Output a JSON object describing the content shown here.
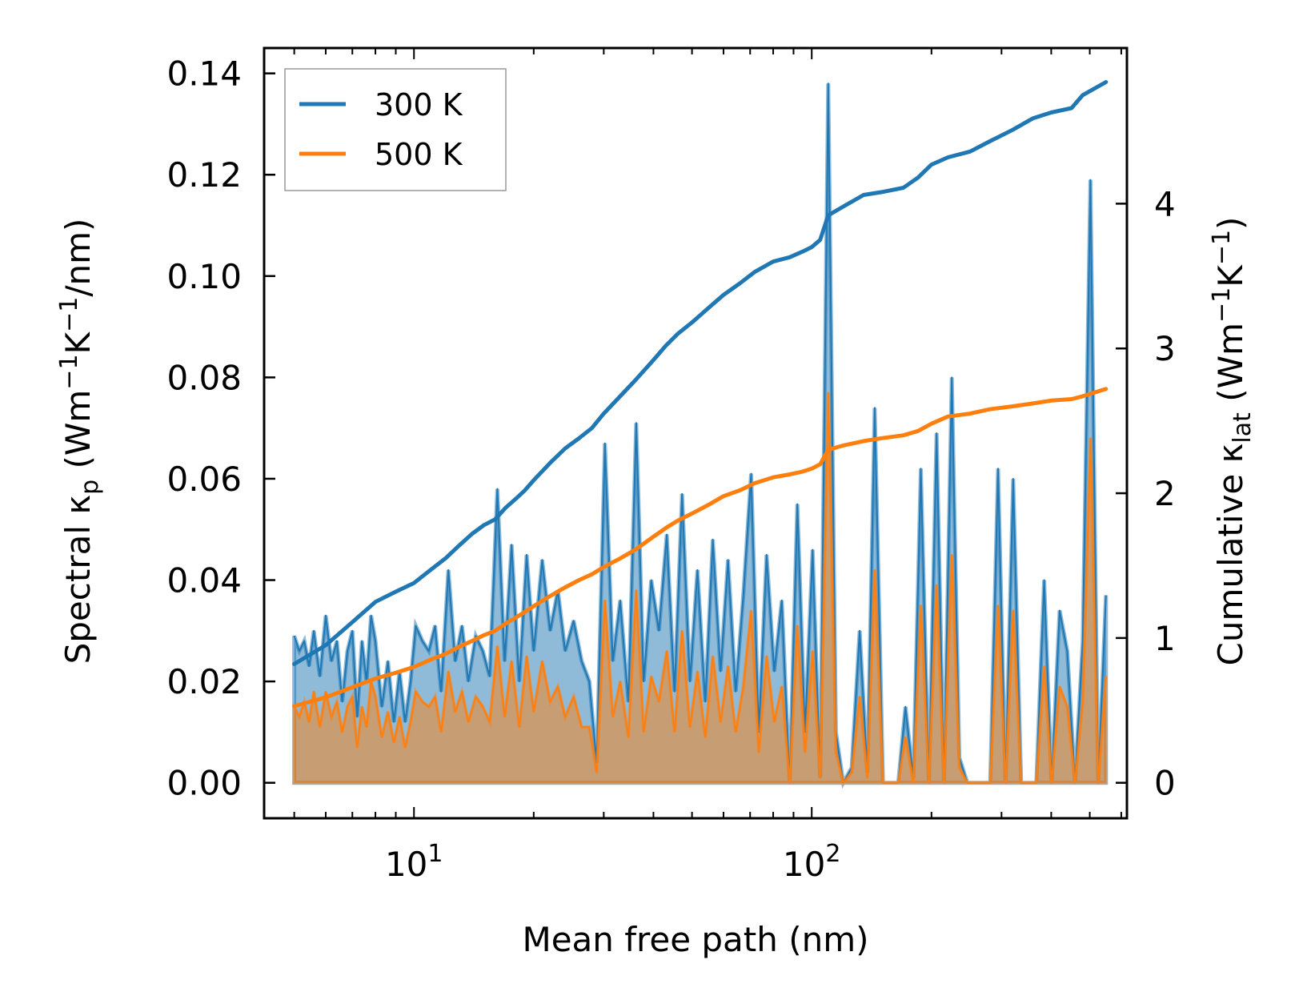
{
  "chart_data": {
    "type": "line",
    "xscale": "log",
    "xlabel": "Mean free path (nm)",
    "ylabel_left": {
      "prefix": "Spectral κ",
      "sub": "p",
      "units": " (Wm",
      "sup1": "−1",
      "mid": "K",
      "sup2": "−1",
      "tail": "/nm)"
    },
    "ylabel_right": {
      "prefix": "Cumulative κ",
      "sub": "lat",
      "units": " (Wm",
      "sup1": "−1",
      "mid": "K",
      "sup2": "−1",
      "tail": ")"
    },
    "xlim": [
      4.2,
      620
    ],
    "ylim_left": [
      -0.007,
      0.145
    ],
    "ylim_right": [
      -0.245,
      5.075
    ],
    "xticks_major": [
      {
        "value": 10,
        "base": "10",
        "exp": "1"
      },
      {
        "value": 100,
        "base": "10",
        "exp": "2"
      }
    ],
    "yticks_left": [
      {
        "value": 0.0,
        "label": "0.00"
      },
      {
        "value": 0.02,
        "label": "0.02"
      },
      {
        "value": 0.04,
        "label": "0.04"
      },
      {
        "value": 0.06,
        "label": "0.06"
      },
      {
        "value": 0.08,
        "label": "0.08"
      },
      {
        "value": 0.1,
        "label": "0.10"
      },
      {
        "value": 0.12,
        "label": "0.12"
      },
      {
        "value": 0.14,
        "label": "0.14"
      }
    ],
    "yticks_right": [
      {
        "value": 0,
        "label": "0"
      },
      {
        "value": 1,
        "label": "1"
      },
      {
        "value": 2,
        "label": "2"
      },
      {
        "value": 3,
        "label": "3"
      },
      {
        "value": 4,
        "label": "4"
      }
    ],
    "legend": {
      "location": "top-left",
      "entries": [
        {
          "label": "300 K",
          "color": "#1f77b4"
        },
        {
          "label": "500 K",
          "color": "#ff7f0e"
        }
      ]
    },
    "spectral_x": [
      5.0,
      5.15,
      5.3,
      5.45,
      5.6,
      5.8,
      6.0,
      6.2,
      6.4,
      6.6,
      6.8,
      7.0,
      7.2,
      7.4,
      7.6,
      7.8,
      8.0,
      8.3,
      8.6,
      8.9,
      9.2,
      9.5,
      9.8,
      10.1,
      10.5,
      10.9,
      11.3,
      11.7,
      12.2,
      12.7,
      13.2,
      13.7,
      14.3,
      14.9,
      15.5,
      16.2,
      16.9,
      17.6,
      18.4,
      19.2,
      20.0,
      21.0,
      22.0,
      23.0,
      24.0,
      25.2,
      26.4,
      27.6,
      28.8,
      30.2,
      31.6,
      33.0,
      34.6,
      36.2,
      37.8,
      39.5,
      41.3,
      43.2,
      45.2,
      47.2,
      49.4,
      51.6,
      54.0,
      56.4,
      59.0,
      61.6,
      64.4,
      67.3,
      70.4,
      73.6,
      77.0,
      80.5,
      84.1,
      88.0,
      92.0,
      96.2,
      100.5,
      105.0,
      110.0,
      115.0,
      120.0,
      126.0,
      132.0,
      138.0,
      144.0,
      151.0,
      158.0,
      165.0,
      172.0,
      180.0,
      188.0,
      197.0,
      206.0,
      215.0,
      225.0,
      235.0,
      246.0,
      257.0,
      269.0,
      281.0,
      294.0,
      307.0,
      321.0,
      336.0,
      351.0,
      367.0,
      384.0,
      401.0,
      420.0,
      439.0,
      459.0,
      480.0,
      502.0,
      525.0,
      549.0
    ],
    "spectral_300K": [
      0.029,
      0.026,
      0.028,
      0.023,
      0.03,
      0.021,
      0.033,
      0.024,
      0.028,
      0.016,
      0.026,
      0.03,
      0.013,
      0.028,
      0.02,
      0.033,
      0.028,
      0.015,
      0.024,
      0.012,
      0.022,
      0.012,
      0.02,
      0.031,
      0.028,
      0.026,
      0.031,
      0.018,
      0.042,
      0.024,
      0.031,
      0.02,
      0.029,
      0.026,
      0.021,
      0.058,
      0.024,
      0.047,
      0.02,
      0.045,
      0.026,
      0.044,
      0.03,
      0.038,
      0.026,
      0.032,
      0.024,
      0.02,
      0.004,
      0.067,
      0.024,
      0.036,
      0.016,
      0.071,
      0.02,
      0.04,
      0.03,
      0.049,
      0.018,
      0.057,
      0.02,
      0.042,
      0.016,
      0.048,
      0.022,
      0.044,
      0.018,
      0.037,
      0.061,
      0.01,
      0.045,
      0.022,
      0.036,
      0.0,
      0.055,
      0.01,
      0.046,
      0.001,
      0.138,
      0.01,
      0.0,
      0.003,
      0.03,
      0.002,
      0.074,
      0.0,
      0.0,
      0.0,
      0.015,
      0.001,
      0.062,
      0.0,
      0.069,
      0.0,
      0.08,
      0.005,
      0.0,
      0.0,
      0.0,
      0.0,
      0.062,
      0.0,
      0.06,
      0.0,
      0.0,
      0.0,
      0.04,
      0.0,
      0.034,
      0.026,
      0.0,
      0.028,
      0.119,
      0.0,
      0.037
    ],
    "spectral_500K": [
      0.015,
      0.013,
      0.016,
      0.012,
      0.018,
      0.011,
      0.018,
      0.013,
      0.016,
      0.01,
      0.015,
      0.017,
      0.007,
      0.015,
      0.011,
      0.02,
      0.017,
      0.009,
      0.014,
      0.008,
      0.013,
      0.007,
      0.012,
      0.018,
      0.016,
      0.015,
      0.017,
      0.01,
      0.022,
      0.014,
      0.018,
      0.012,
      0.017,
      0.015,
      0.012,
      0.027,
      0.013,
      0.024,
      0.011,
      0.025,
      0.014,
      0.024,
      0.016,
      0.019,
      0.013,
      0.017,
      0.011,
      0.011,
      0.002,
      0.036,
      0.013,
      0.02,
      0.009,
      0.038,
      0.01,
      0.021,
      0.016,
      0.026,
      0.01,
      0.03,
      0.011,
      0.022,
      0.009,
      0.025,
      0.012,
      0.023,
      0.01,
      0.019,
      0.034,
      0.006,
      0.025,
      0.012,
      0.019,
      0.0,
      0.031,
      0.006,
      0.026,
      0.001,
      0.077,
      0.006,
      0.0,
      0.002,
      0.017,
      0.001,
      0.042,
      0.0,
      0.0,
      0.0,
      0.009,
      0.0,
      0.035,
      0.0,
      0.039,
      0.0,
      0.045,
      0.003,
      0.0,
      0.0,
      0.0,
      0.0,
      0.035,
      0.0,
      0.034,
      0.0,
      0.0,
      0.0,
      0.023,
      0.0,
      0.019,
      0.015,
      0.0,
      0.016,
      0.068,
      0.0,
      0.021
    ],
    "cumulative_x": [
      5.0,
      6.0,
      7.0,
      8.0,
      9.0,
      10.0,
      11.0,
      12.0,
      13.0,
      14.0,
      15.0,
      16.0,
      17.0,
      18.0,
      19.0,
      20.0,
      22.0,
      24.0,
      26.0,
      28.0,
      30.0,
      33.0,
      36.0,
      40.0,
      43.0,
      46.0,
      50.0,
      55.0,
      60.0,
      66.0,
      72.0,
      80.0,
      88.0,
      95.0,
      100.0,
      105.0,
      110.0,
      120.0,
      135.0,
      150.0,
      170.0,
      185.0,
      200.0,
      220.0,
      250.0,
      280.0,
      320.0,
      360.0,
      400.0,
      450.0,
      480.0,
      549.0
    ],
    "cumulative_300K": [
      0.82,
      0.95,
      1.11,
      1.25,
      1.32,
      1.38,
      1.47,
      1.55,
      1.64,
      1.72,
      1.78,
      1.82,
      1.9,
      1.96,
      2.02,
      2.09,
      2.21,
      2.31,
      2.38,
      2.45,
      2.55,
      2.67,
      2.78,
      2.92,
      3.02,
      3.1,
      3.18,
      3.28,
      3.37,
      3.45,
      3.53,
      3.6,
      3.63,
      3.67,
      3.7,
      3.75,
      3.92,
      3.98,
      4.06,
      4.08,
      4.11,
      4.18,
      4.27,
      4.32,
      4.36,
      4.43,
      4.51,
      4.59,
      4.63,
      4.66,
      4.75,
      4.84
    ],
    "cumulative_500K": [
      0.53,
      0.59,
      0.66,
      0.72,
      0.76,
      0.8,
      0.85,
      0.89,
      0.94,
      0.98,
      1.02,
      1.05,
      1.1,
      1.14,
      1.18,
      1.22,
      1.29,
      1.35,
      1.4,
      1.44,
      1.49,
      1.55,
      1.61,
      1.7,
      1.76,
      1.81,
      1.86,
      1.92,
      1.98,
      2.02,
      2.07,
      2.11,
      2.13,
      2.15,
      2.17,
      2.2,
      2.3,
      2.33,
      2.36,
      2.38,
      2.4,
      2.43,
      2.48,
      2.53,
      2.55,
      2.58,
      2.6,
      2.62,
      2.64,
      2.65,
      2.67,
      2.72
    ]
  }
}
